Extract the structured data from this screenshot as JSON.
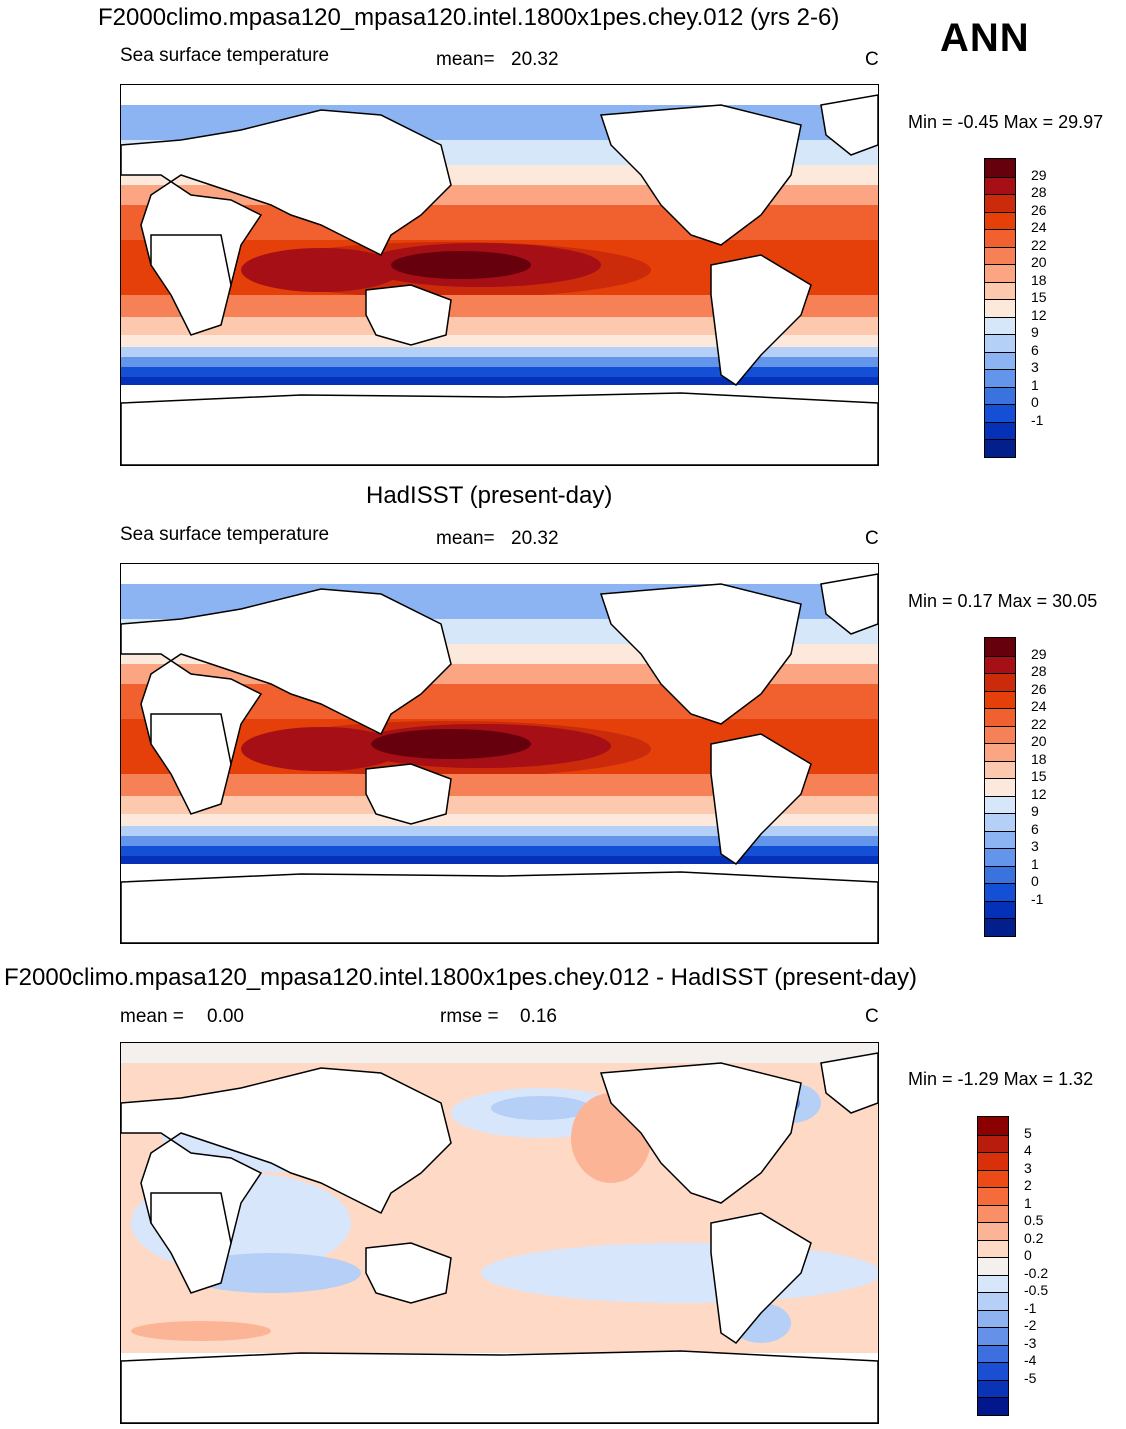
{
  "season": "ANN",
  "panels": [
    {
      "title": "F2000climo.mpasa120_mpasa120.intel.1800x1pes.chey.012 (yrs 2-6)",
      "variable": "Sea surface temperature",
      "stat1_label": "mean=",
      "stat1_value": "20.32",
      "stat2_label": "",
      "stat2_value": "",
      "units": "C",
      "min_label": "Min =",
      "min_value": "-0.45",
      "max_label": "Max =",
      "max_value": "29.97",
      "colorbar": {
        "labels": [
          "29",
          "28",
          "26",
          "24",
          "22",
          "20",
          "18",
          "15",
          "12",
          "9",
          "6",
          "3",
          "1",
          "0",
          "-1"
        ],
        "colors": [
          "#67000d",
          "#a50f15",
          "#cb2a0b",
          "#e6400a",
          "#f0612f",
          "#f78156",
          "#fba583",
          "#fcc9ae",
          "#fde9dc",
          "#d6e7fa",
          "#b4d0f7",
          "#8cb4f2",
          "#6396ea",
          "#3a72de",
          "#1450d6",
          "#0530b8",
          "#031f8c"
        ]
      }
    },
    {
      "title": "HadISST (present-day)",
      "variable": "Sea surface temperature",
      "stat1_label": "mean=",
      "stat1_value": "20.32",
      "stat2_label": "",
      "stat2_value": "",
      "units": "C",
      "min_label": "Min =",
      "min_value": "0.17",
      "max_label": "Max =",
      "max_value": "30.05",
      "colorbar": {
        "labels": [
          "29",
          "28",
          "26",
          "24",
          "22",
          "20",
          "18",
          "15",
          "12",
          "9",
          "6",
          "3",
          "1",
          "0",
          "-1"
        ],
        "colors": [
          "#67000d",
          "#a50f15",
          "#cb2a0b",
          "#e6400a",
          "#f0612f",
          "#f78156",
          "#fba583",
          "#fcc9ae",
          "#fde9dc",
          "#d6e7fa",
          "#b4d0f7",
          "#8cb4f2",
          "#6396ea",
          "#3a72de",
          "#1450d6",
          "#0530b8",
          "#031f8c"
        ]
      }
    },
    {
      "title": "F2000climo.mpasa120_mpasa120.intel.1800x1pes.chey.012 - HadISST (present-day)",
      "variable": "",
      "stat1_label": "mean =",
      "stat1_value": "0.00",
      "stat2_label": "rmse =",
      "stat2_value": "0.16",
      "units": "C",
      "min_label": "Min =",
      "min_value": "-1.29",
      "max_label": "Max =",
      "max_value": "1.32",
      "colorbar": {
        "labels": [
          "5",
          "4",
          "3",
          "2",
          "1",
          "0.5",
          "0.2",
          "0",
          "-0.2",
          "-0.5",
          "-1",
          "-2",
          "-3",
          "-4",
          "-5"
        ],
        "colors": [
          "#8b0000",
          "#b71c0c",
          "#d8300a",
          "#ec4a17",
          "#f56b3a",
          "#f98f66",
          "#fbb496",
          "#fdd9c6",
          "#f4f0ee",
          "#d7e6fb",
          "#b6cff7",
          "#8fb2f1",
          "#6592e8",
          "#3d6fde",
          "#1b4fd3",
          "#0a34b5",
          "#02178c"
        ]
      }
    }
  ]
}
